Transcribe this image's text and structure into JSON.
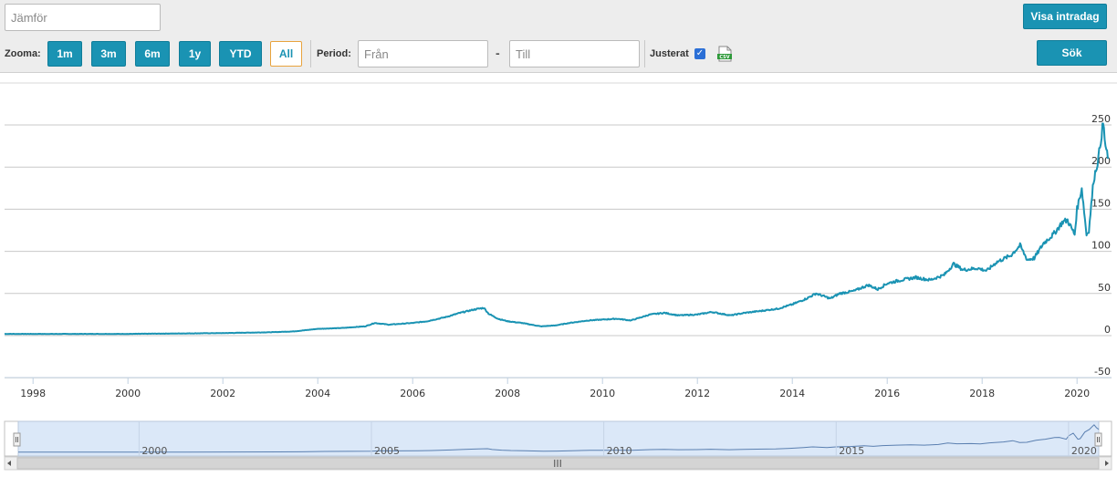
{
  "toolbar": {
    "compare_placeholder": "Jämför",
    "intraday_button": "Visa intradag",
    "search_button": "Sök",
    "zoom_label": "Zooma:",
    "zoom_buttons": [
      "1m",
      "3m",
      "6m",
      "1y",
      "YTD",
      "All"
    ],
    "zoom_active": "All",
    "period_label": "Period:",
    "from_placeholder": "Från",
    "to_placeholder": "Till",
    "period_separator": "-",
    "adjusted_label": "Justerat",
    "adjusted_checked": true,
    "export_icon": "csv-file-icon"
  },
  "colors": {
    "accent": "#1a93b3",
    "line": "#1a93b3",
    "navigator_fill": "#dbe8f8",
    "active_border": "#e8a33d"
  },
  "chart_data": {
    "type": "line",
    "title": "",
    "xlabel": "",
    "ylabel": "",
    "xlim": [
      1997.4,
      2020.65
    ],
    "ylim": [
      -50,
      260
    ],
    "y_ticks": [
      250,
      200,
      150,
      100,
      50,
      0,
      -50
    ],
    "x_ticks": [
      "1998",
      "2000",
      "2002",
      "2004",
      "2006",
      "2008",
      "2010",
      "2012",
      "2014",
      "2016",
      "2018",
      "2020"
    ],
    "grid": true,
    "series": [
      {
        "values": [
          [
            1997.4,
            2
          ],
          [
            1998.0,
            2
          ],
          [
            1999.0,
            2
          ],
          [
            2000.0,
            2
          ],
          [
            2001.0,
            2.5
          ],
          [
            2002.0,
            3
          ],
          [
            2003.0,
            4
          ],
          [
            2003.5,
            5
          ],
          [
            2004.0,
            8
          ],
          [
            2004.5,
            9
          ],
          [
            2005.0,
            11
          ],
          [
            2005.2,
            15
          ],
          [
            2005.5,
            13
          ],
          [
            2006.0,
            15
          ],
          [
            2006.3,
            17
          ],
          [
            2006.7,
            22
          ],
          [
            2007.0,
            27
          ],
          [
            2007.3,
            31
          ],
          [
            2007.5,
            33
          ],
          [
            2007.6,
            26
          ],
          [
            2007.8,
            20
          ],
          [
            2008.0,
            17
          ],
          [
            2008.3,
            15
          ],
          [
            2008.7,
            11
          ],
          [
            2009.0,
            12
          ],
          [
            2009.3,
            15
          ],
          [
            2009.7,
            18
          ],
          [
            2010.0,
            19
          ],
          [
            2010.3,
            20
          ],
          [
            2010.6,
            18
          ],
          [
            2011.0,
            25
          ],
          [
            2011.3,
            27
          ],
          [
            2011.6,
            24
          ],
          [
            2012.0,
            25
          ],
          [
            2012.3,
            28
          ],
          [
            2012.7,
            24
          ],
          [
            2013.0,
            27
          ],
          [
            2013.3,
            29
          ],
          [
            2013.7,
            32
          ],
          [
            2014.0,
            37
          ],
          [
            2014.3,
            44
          ],
          [
            2014.5,
            50
          ],
          [
            2014.8,
            44
          ],
          [
            2015.0,
            50
          ],
          [
            2015.3,
            53
          ],
          [
            2015.6,
            60
          ],
          [
            2015.8,
            55
          ],
          [
            2016.0,
            62
          ],
          [
            2016.3,
            66
          ],
          [
            2016.6,
            69
          ],
          [
            2016.9,
            66
          ],
          [
            2017.2,
            72
          ],
          [
            2017.4,
            85
          ],
          [
            2017.6,
            78
          ],
          [
            2017.9,
            80
          ],
          [
            2018.1,
            77
          ],
          [
            2018.3,
            87
          ],
          [
            2018.6,
            95
          ],
          [
            2018.8,
            107
          ],
          [
            2018.95,
            90
          ],
          [
            2019.1,
            92
          ],
          [
            2019.3,
            110
          ],
          [
            2019.5,
            120
          ],
          [
            2019.7,
            135
          ],
          [
            2019.8,
            137
          ],
          [
            2019.95,
            120
          ],
          [
            2020.0,
            150
          ],
          [
            2020.1,
            175
          ],
          [
            2020.2,
            120
          ],
          [
            2020.25,
            125
          ],
          [
            2020.35,
            185
          ],
          [
            2020.45,
            210
          ],
          [
            2020.52,
            240
          ],
          [
            2020.55,
            252
          ],
          [
            2020.6,
            225
          ],
          [
            2020.65,
            210
          ]
        ]
      }
    ]
  },
  "navigator": {
    "labels": [
      "2000",
      "2005",
      "2010",
      "2015",
      "2020"
    ],
    "range": [
      1997.4,
      2020.65
    ],
    "scrollbar_grip": "III"
  }
}
